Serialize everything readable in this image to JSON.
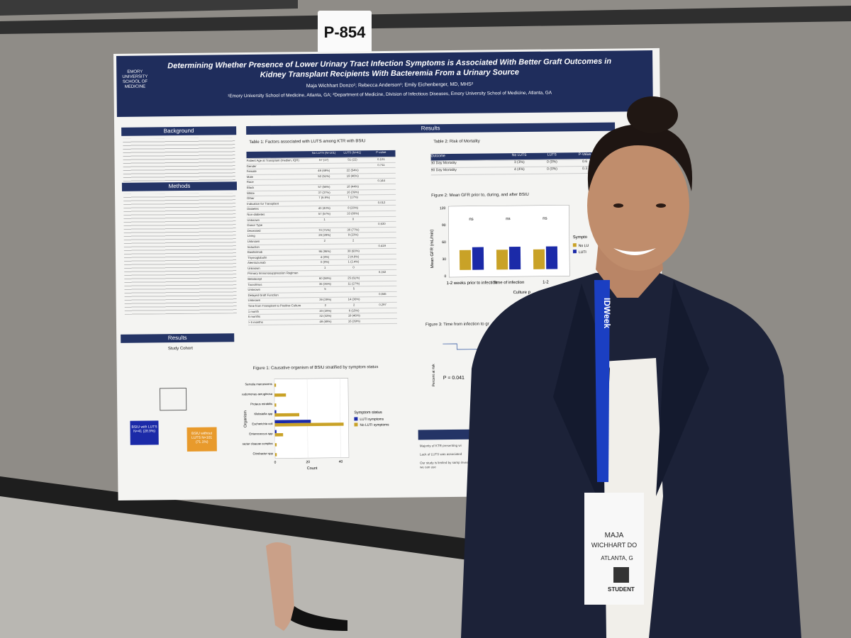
{
  "sign": "P-854",
  "poster": {
    "logo": "EMORY UNIVERSITY SCHOOL OF MEDICINE",
    "title": "Determining Whether Presence of Lower Urinary Tract Infection Symptoms is Associated With Better Graft Outcomes in Kidney Transplant Recipients With Bacteremia From a Urinary Source",
    "authors": "Maja Wichhart Donzo¹; Rebecca Anderson¹; Emily Eichenberger, MD, MHS²",
    "affiliations": "¹Emory University School of Medicine, Atlanta, GA; ²Department of Medicine, Division of Infectious Diseases, Emory University School of Medicine, Atlanta, GA",
    "sections": {
      "background": "Background",
      "methods": "Methods",
      "results_left": "Results",
      "results": "Results"
    },
    "study_cohort": {
      "title": "Study Cohort",
      "with_luts": "BSIU with LUTS N=41 (28.9%)",
      "without_luts": "BSIU without LUTS N=101 (71.1%)"
    },
    "table1": {
      "caption": "Table 1: Factors associated with LUTS among KTR with BSIU",
      "header": [
        "No LUTS (N=101)",
        "LUTS (N=41)",
        "P-value"
      ],
      "rows": [
        [
          "Patient Age at Transplant (median, IQR)",
          "57 (17)",
          "51 (22)",
          "0.101"
        ],
        [
          "Gender",
          "",
          "",
          "0.711"
        ],
        [
          "Female",
          "49 (49%)",
          "22 (54%)",
          ""
        ],
        [
          "Male",
          "52 (51%)",
          "19 (46%)",
          ""
        ],
        [
          "Race",
          "",
          "",
          "0.144"
        ],
        [
          "Black",
          "57 (56%)",
          "18 (44%)",
          ""
        ],
        [
          "White",
          "37 (37%)",
          "16 (39%)",
          ""
        ],
        [
          "Other",
          "7 (6.9%)",
          "7 (17%)",
          ""
        ],
        [
          "Indication for Transplant",
          "",
          "",
          "0.012"
        ],
        [
          "Diabetes",
          "43 (43%)",
          "8 (20%)",
          ""
        ],
        [
          "Non-diabetes",
          "57 (57%)",
          "33 (80%)",
          ""
        ],
        [
          "Unknown",
          "1",
          "0",
          ""
        ],
        [
          "Donor Type",
          "",
          "",
          "0.530"
        ],
        [
          "Deceased",
          "70 (71%)",
          "30 (77%)",
          ""
        ],
        [
          "Living",
          "29 (29%)",
          "9 (23%)",
          ""
        ],
        [
          "Unknown",
          "2",
          "2",
          ""
        ],
        [
          "Induction",
          "",
          "",
          "0.419"
        ],
        [
          "Basiliximab",
          "96 (96%)",
          "38 (93%)",
          ""
        ],
        [
          "Thymoglobulin",
          "4 (4%)",
          "2 (4.9%)",
          ""
        ],
        [
          "Alemtuzumab",
          "0 (0%)",
          "1 (2.4%)",
          ""
        ],
        [
          "Unknown",
          "1",
          "0",
          ""
        ],
        [
          "Primary Immunosuppression Regimen",
          "",
          "",
          "0.242"
        ],
        [
          "Belatacept",
          "60 (59%)",
          "25 (61%)",
          ""
        ],
        [
          "Tacrolimus",
          "36 (36%)",
          "11 (27%)",
          ""
        ],
        [
          "Unknown",
          "5",
          "5",
          ""
        ],
        [
          "Delayed Graft Function",
          "",
          "",
          "0.846"
        ],
        [
          "Unknown",
          "39 (39%)",
          "14 (36%)",
          ""
        ],
        [
          "Time from Transplant to Positive Culture",
          "2",
          "2",
          "0.297"
        ],
        [
          "1 month",
          "20 (20%)",
          "6 (15%)",
          ""
        ],
        [
          "6 months",
          "32 (32%)",
          "19 (46%)",
          ""
        ],
        [
          "> 6 months",
          "49 (49%)",
          "16 (39%)",
          ""
        ]
      ]
    },
    "table2": {
      "caption": "Table 2: Risk of Mortality",
      "header": [
        "Outcome",
        "No LUTS",
        "LUTS",
        "P-Value"
      ],
      "rows": [
        [
          "30 Day Mortality",
          "3 (3%)",
          "0 (0%)",
          "0.6"
        ],
        [
          "90 Day Mortality",
          "4 (4%)",
          "0 (0%)",
          "0.3"
        ]
      ]
    },
    "figure2": {
      "caption": "Figure 2: Mean GFR prior to, during, and after BSIU",
      "y_label": "Mean GFR (mL/min)",
      "yticks": [
        "120",
        "90",
        "60",
        "30",
        "0"
      ],
      "x_labels": [
        "1-2 weeks prior to infection",
        "Time of infection",
        "1-2"
      ],
      "x_title": "Culture p",
      "markers": [
        "ns",
        "ns",
        "ns"
      ],
      "legend_title": "Sympto",
      "legend": [
        "No LU",
        "LUTI"
      ]
    },
    "figure3": {
      "caption": "Figure 3: Time from infection to gr",
      "y_label": "Percent at risk",
      "p_value": "P = 0.041"
    },
    "figure1": {
      "caption": "Figure 1: Causative organism of BSIU stratified by symptom status",
      "type": "bar",
      "y_label": "Organism",
      "x_label": "Count",
      "categories": [
        "Serratia marcescens",
        "Pseudomonas aeruginosa",
        "Proteus mirabilis",
        "Klebsiella spp",
        "Escherichia coli",
        "Enterococcus spp",
        "Enterobacter cloacae complex",
        "Citrobacter spp"
      ],
      "xlim": [
        0,
        45
      ],
      "xticks": [
        0,
        20,
        40
      ],
      "legend_title": "Symptom status",
      "series": [
        {
          "name": "LUTI symptoms",
          "color": "#1b2aa8",
          "values": [
            0,
            0,
            0,
            1,
            22,
            1,
            0,
            0
          ]
        },
        {
          "name": "No LUTI symptoms",
          "color": "#c9a227",
          "values": [
            1,
            7,
            1,
            15,
            42,
            5,
            1,
            1
          ]
        }
      ]
    },
    "conclusions": [
      "Majority of KTR presenting wi",
      "Lack of LUTS was associated",
      "Our study is limited by samp investigate how we can use"
    ]
  },
  "badge": {
    "lanyard": "IDWeek",
    "first": "MAJA",
    "last": "WICHHART DO",
    "city": "ATLANTA, G",
    "role": "STUDENT"
  }
}
